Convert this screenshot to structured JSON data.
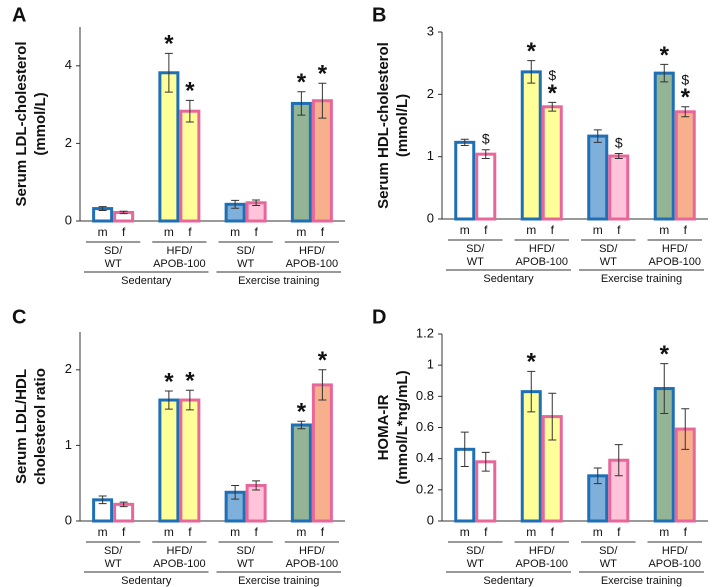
{
  "chart_data": [
    {
      "type": "bar",
      "panel": "A",
      "ylabel": [
        "Serum LDL-cholesterol",
        "(mmol/L)"
      ],
      "ylim": [
        0,
        5
      ],
      "yticks": [
        0,
        2,
        4
      ],
      "categories": [
        "m",
        "f",
        "m",
        "f",
        "m",
        "f",
        "m",
        "f"
      ],
      "subgroups": [
        [
          "SD/",
          "WT"
        ],
        [
          "HFD/",
          "APOB-100"
        ],
        [
          "SD/",
          "WT"
        ],
        [
          "HFD/",
          "APOB-100"
        ]
      ],
      "groups": [
        "Sedentary",
        "Exercise training"
      ],
      "values": [
        0.32,
        0.22,
        3.82,
        2.83,
        0.43,
        0.47,
        3.03,
        3.1
      ],
      "errors": [
        0.05,
        0.03,
        0.5,
        0.28,
        0.1,
        0.07,
        0.3,
        0.45
      ],
      "annotations": [
        [],
        [],
        [
          "*"
        ],
        [
          "*"
        ],
        [],
        [],
        [
          "*"
        ],
        [
          "*"
        ]
      ],
      "edge_colors": [
        "#1f6fb5",
        "#e8679b",
        "#1f6fb5",
        "#e8679b",
        "#1f6fb5",
        "#e8679b",
        "#1f6fb5",
        "#e8679b"
      ],
      "fill_colors": [
        "#ffffff",
        "#ffffff",
        "#ffff99",
        "#ffff99",
        "#7fb0dc",
        "#ffc4da",
        "#93b596",
        "#f7b08c"
      ]
    },
    {
      "type": "bar",
      "panel": "B",
      "ylabel": [
        "Serum HDL-cholesterol",
        "(mmol/L)"
      ],
      "ylim": [
        0,
        3
      ],
      "yticks": [
        0,
        1,
        2,
        3
      ],
      "categories": [
        "m",
        "f",
        "m",
        "f",
        "m",
        "f",
        "m",
        "f"
      ],
      "subgroups": [
        [
          "SD/",
          "WT"
        ],
        [
          "HFD/",
          "APOB-100"
        ],
        [
          "SD/",
          "WT"
        ],
        [
          "HFD/",
          "APOB-100"
        ]
      ],
      "groups": [
        "Sedentary",
        "Exercise training"
      ],
      "values": [
        1.23,
        1.04,
        2.36,
        1.8,
        1.33,
        1.01,
        2.34,
        1.72
      ],
      "errors": [
        0.05,
        0.07,
        0.18,
        0.07,
        0.1,
        0.04,
        0.14,
        0.08
      ],
      "annotations": [
        [],
        [
          "$"
        ],
        [
          "*"
        ],
        [
          "$",
          "*"
        ],
        [],
        [
          "$"
        ],
        [
          "*"
        ],
        [
          "$",
          "*"
        ]
      ],
      "edge_colors": [
        "#1f6fb5",
        "#e8679b",
        "#1f6fb5",
        "#e8679b",
        "#1f6fb5",
        "#e8679b",
        "#1f6fb5",
        "#e8679b"
      ],
      "fill_colors": [
        "#ffffff",
        "#ffffff",
        "#ffff99",
        "#ffff99",
        "#7fb0dc",
        "#ffc4da",
        "#93b596",
        "#f7b08c"
      ]
    },
    {
      "type": "bar",
      "panel": "C",
      "ylabel": [
        "Serum LDL/HDL",
        "cholesterol  ratio"
      ],
      "ylim": [
        0,
        2.5
      ],
      "yticks": [
        0,
        1,
        2
      ],
      "categories": [
        "m",
        "f",
        "m",
        "f",
        "m",
        "f",
        "m",
        "f"
      ],
      "subgroups": [
        [
          "SD/",
          "WT"
        ],
        [
          "HFD/",
          "APOB-100"
        ],
        [
          "SD/",
          "WT"
        ],
        [
          "HFD/",
          "APOB-100"
        ]
      ],
      "groups": [
        "Sedentary",
        "Exercise training"
      ],
      "values": [
        0.28,
        0.22,
        1.6,
        1.6,
        0.38,
        0.47,
        1.27,
        1.8
      ],
      "errors": [
        0.05,
        0.03,
        0.12,
        0.13,
        0.09,
        0.06,
        0.05,
        0.2
      ],
      "annotations": [
        [],
        [],
        [
          "*"
        ],
        [
          "*"
        ],
        [],
        [],
        [
          "*"
        ],
        [
          "*"
        ]
      ],
      "edge_colors": [
        "#1f6fb5",
        "#e8679b",
        "#1f6fb5",
        "#e8679b",
        "#1f6fb5",
        "#e8679b",
        "#1f6fb5",
        "#e8679b"
      ],
      "fill_colors": [
        "#ffffff",
        "#ffffff",
        "#ffff99",
        "#ffff99",
        "#7fb0dc",
        "#ffc4da",
        "#93b596",
        "#f7b08c"
      ]
    },
    {
      "type": "bar",
      "panel": "D",
      "ylabel": [
        "HOMA-IR",
        "(mmol/L*ng/mL)"
      ],
      "ylim": [
        0,
        1.2
      ],
      "yticks": [
        0,
        0.2,
        0.4,
        0.6,
        0.8,
        1,
        1.2
      ],
      "categories": [
        "m",
        "f",
        "m",
        "f",
        "m",
        "f",
        "m",
        "f"
      ],
      "subgroups": [
        [
          "SD/",
          "WT"
        ],
        [
          "HFD/",
          "APOB-100"
        ],
        [
          "SD/",
          "WT"
        ],
        [
          "HFD/",
          "APOB-100"
        ]
      ],
      "groups": [
        "Sedentary",
        "Exercise training"
      ],
      "values": [
        0.46,
        0.38,
        0.83,
        0.67,
        0.29,
        0.39,
        0.85,
        0.59
      ],
      "errors": [
        0.11,
        0.06,
        0.13,
        0.15,
        0.05,
        0.1,
        0.16,
        0.13
      ],
      "annotations": [
        [],
        [],
        [
          "*"
        ],
        [],
        [],
        [],
        [
          "*"
        ],
        []
      ],
      "edge_colors": [
        "#1f6fb5",
        "#e8679b",
        "#1f6fb5",
        "#e8679b",
        "#1f6fb5",
        "#e8679b",
        "#1f6fb5",
        "#e8679b"
      ],
      "fill_colors": [
        "#ffffff",
        "#ffffff",
        "#ffff99",
        "#ffff99",
        "#7fb0dc",
        "#ffc4da",
        "#93b596",
        "#f7b08c"
      ]
    }
  ]
}
